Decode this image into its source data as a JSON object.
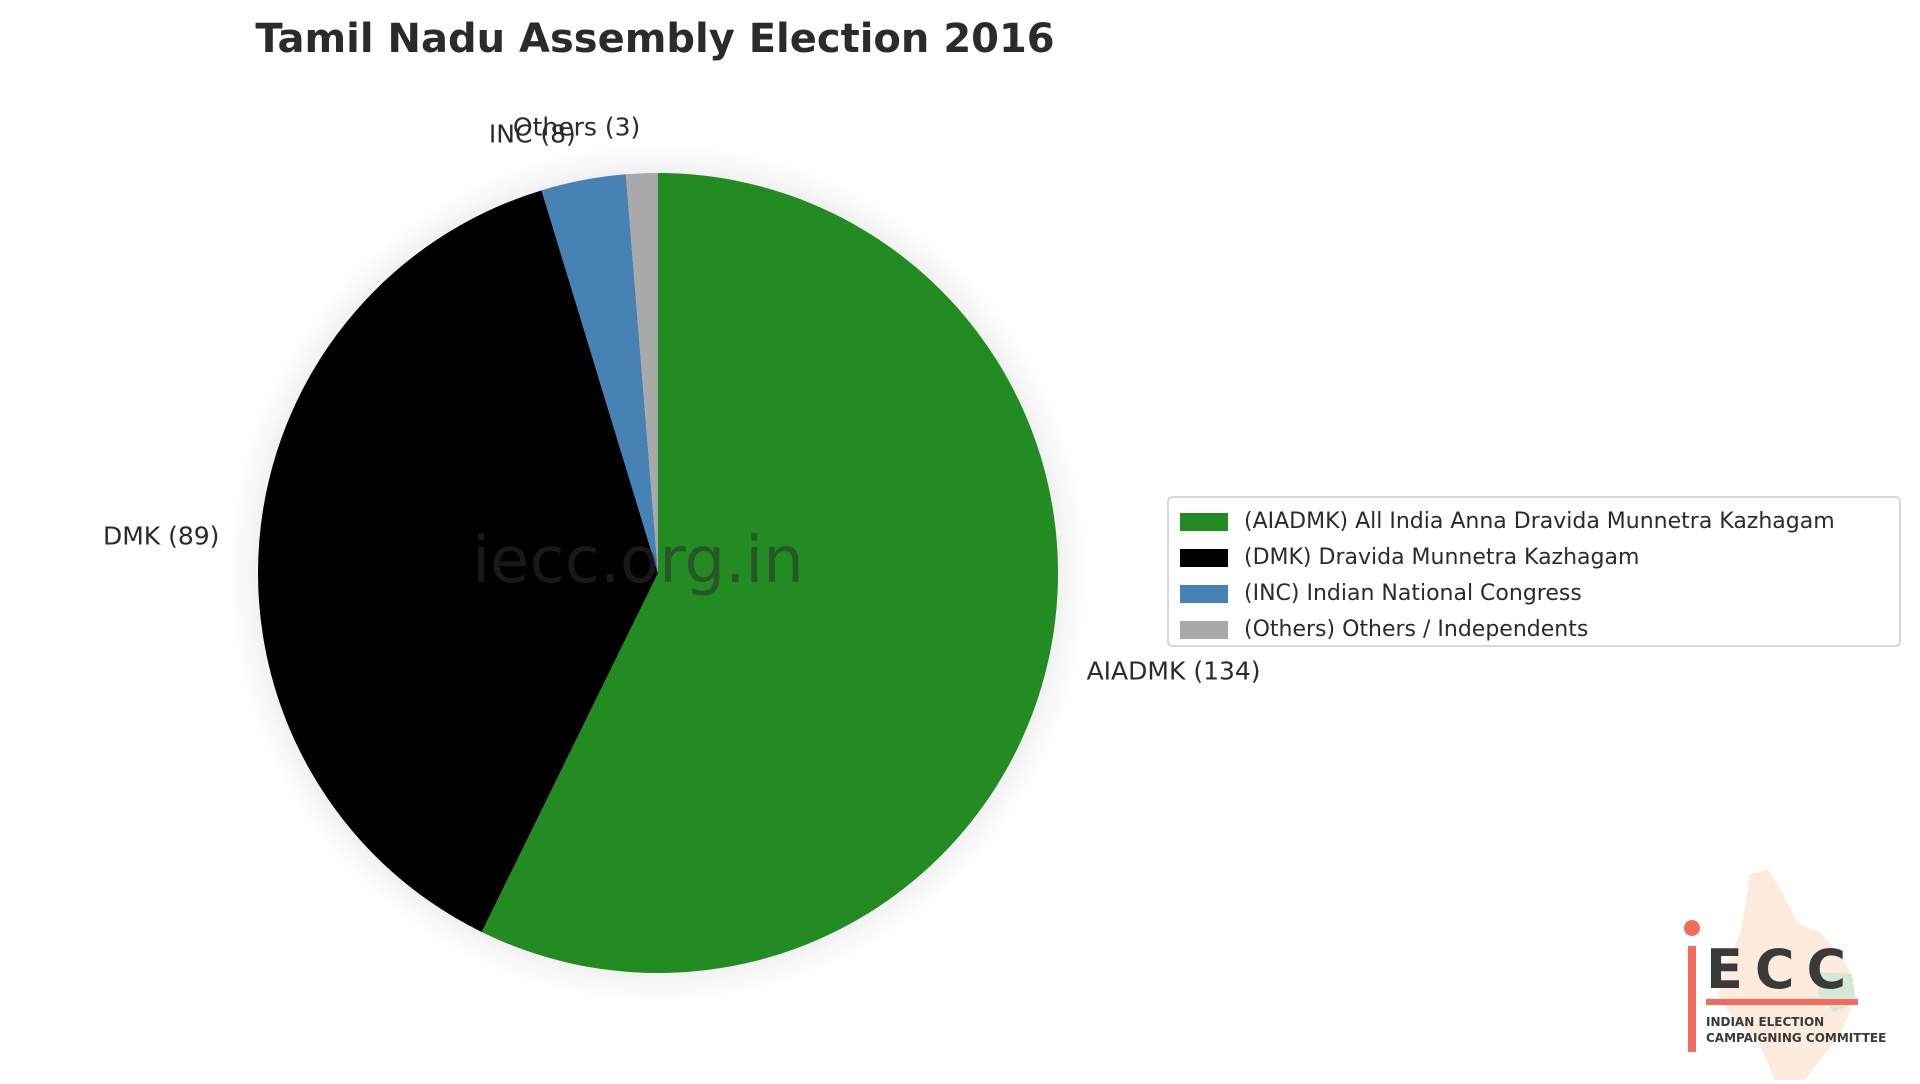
{
  "chart_data": {
    "type": "pie",
    "title": "Tamil Nadu Assembly Election 2016",
    "total_seats": 234,
    "start_angle_deg": 90,
    "direction": "clockwise",
    "slices": [
      {
        "key": "AIADMK",
        "value": 134,
        "color": "#228B22",
        "label": "AIADMK (134)",
        "legend": "(AIADMK) All India Anna Dravida Munnetra Kazhagam"
      },
      {
        "key": "DMK",
        "value": 89,
        "color": "#000000",
        "label": "DMK (89)",
        "legend": "(DMK) Dravida Munnetra Kazhagam"
      },
      {
        "key": "INC",
        "value": 8,
        "color": "#4682B4",
        "label": "INC (8)",
        "legend": "(INC) Indian National Congress"
      },
      {
        "key": "Others",
        "value": 3,
        "color": "#A9A9A9",
        "label": "Others (3)",
        "legend": "(Others) Others / Independents"
      }
    ],
    "legend_position": "right"
  },
  "watermark": "iecc.org.in",
  "logo": {
    "wordmark": "ECC",
    "line1": "INDIAN ELECTION",
    "line2": "CAMPAIGNING COMMITTEE",
    "accent_color": "#F26B5B"
  }
}
